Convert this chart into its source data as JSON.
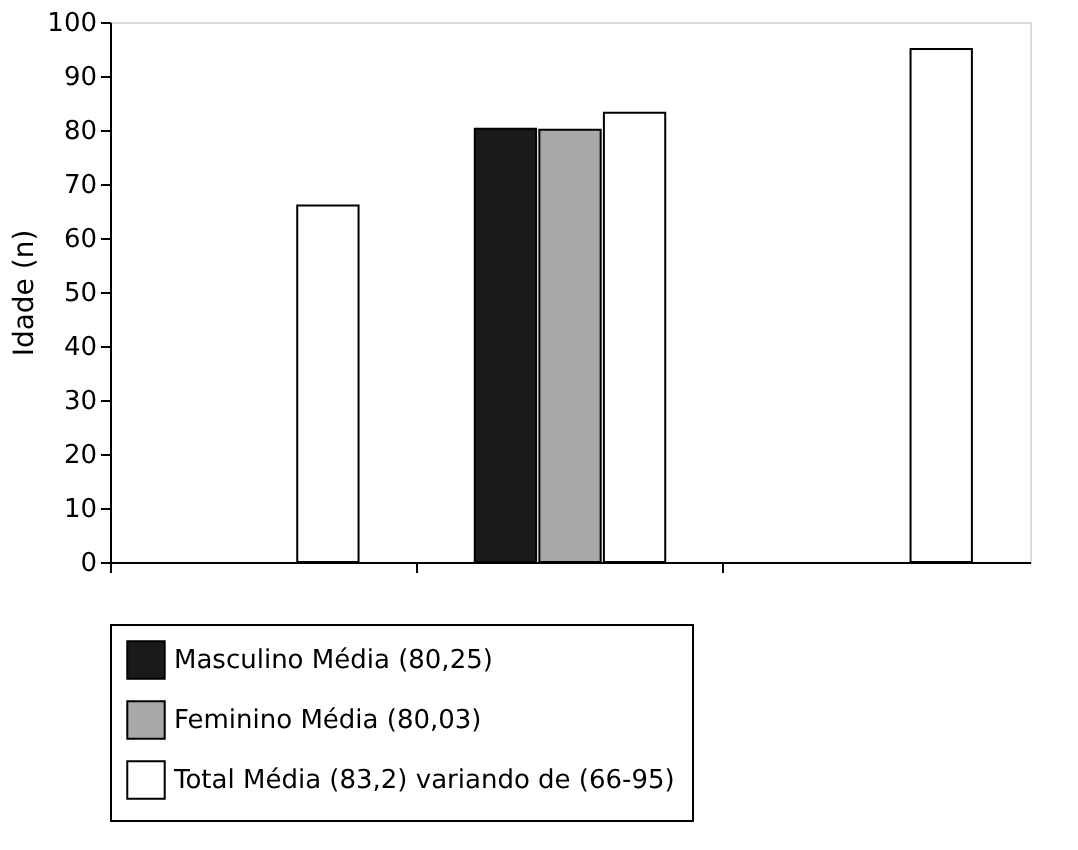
{
  "chart_data": {
    "type": "bar",
    "ylabel": "Idade (n)",
    "categories": [
      null,
      null,
      null
    ],
    "series": [
      {
        "name": "Masculino Média (80,25)",
        "color": "#1a1a1a",
        "values": [
          null,
          80.25,
          null
        ]
      },
      {
        "name": "Feminino Média (80,03)",
        "color": "#a8a8a8",
        "values": [
          null,
          80.03,
          null
        ]
      },
      {
        "name": "Total Média (83,2) variando de (66-95)",
        "color": "#ffffff",
        "values": [
          66,
          83.2,
          95
        ]
      }
    ],
    "ylim": [
      0,
      100
    ],
    "yticks": [
      0,
      10,
      20,
      30,
      40,
      50,
      60,
      70,
      80,
      90,
      100
    ],
    "grid": false,
    "legend": "bottom",
    "tick_labels": "y"
  }
}
